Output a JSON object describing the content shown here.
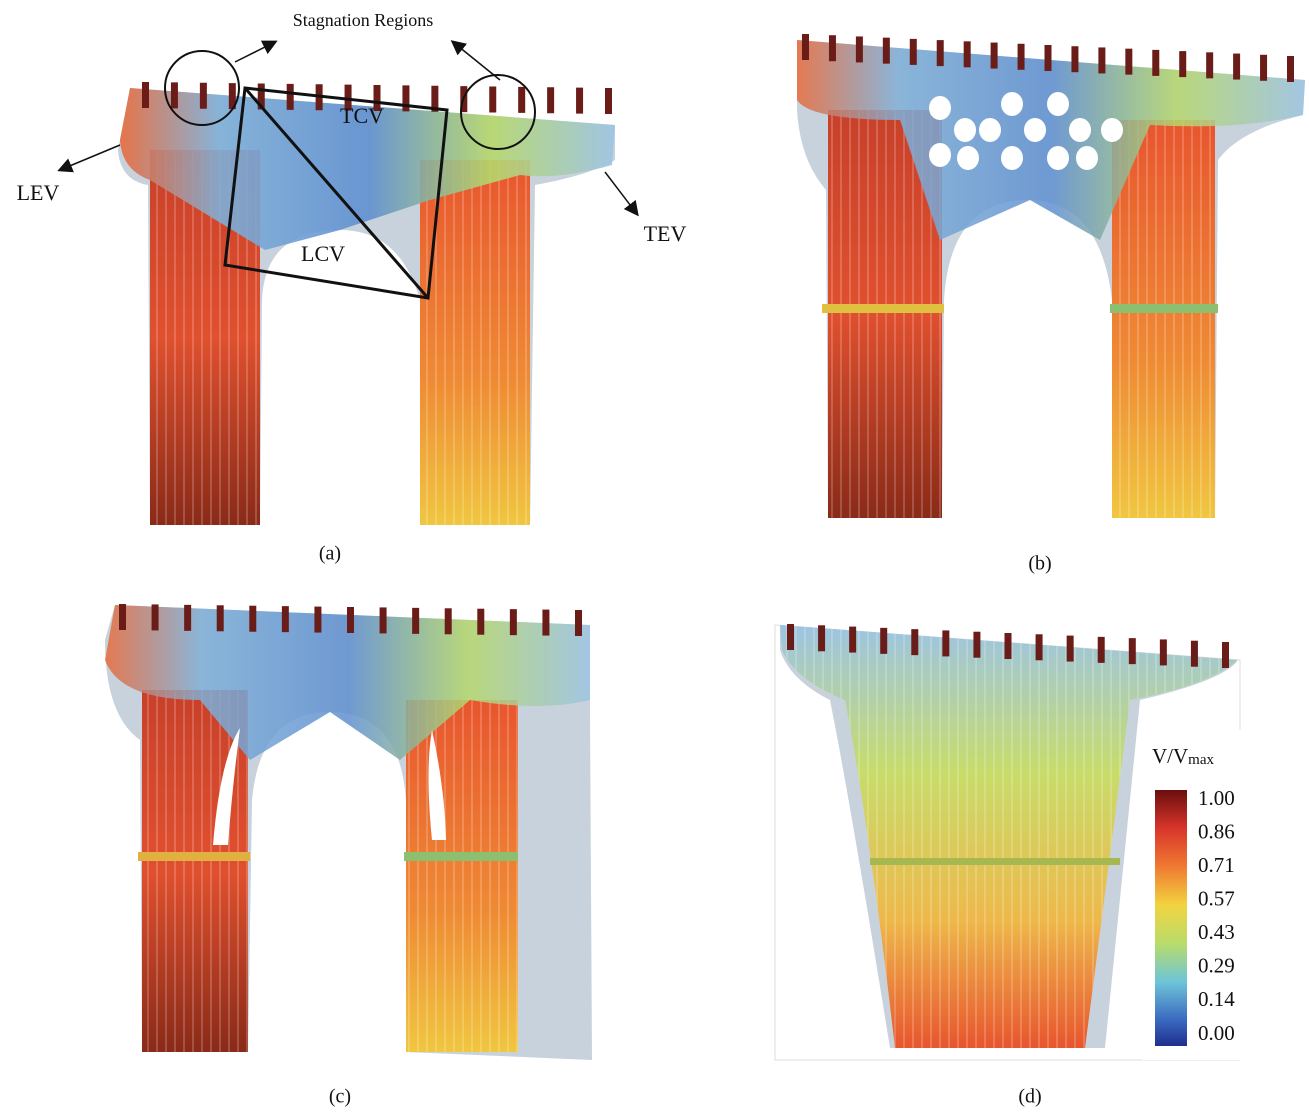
{
  "figure": {
    "annotations": {
      "stagnation": "Stagnation Regions",
      "lev": "LEV",
      "tcv": "TCV",
      "lcv": "LCV",
      "tev": "TEV"
    },
    "captions": [
      "(a)",
      "(b)",
      "(c)",
      "(d)"
    ],
    "colorbar": {
      "title": "V/V",
      "title_sub": "max",
      "ticks": [
        "1.00",
        "0.86",
        "0.71",
        "0.57",
        "0.43",
        "0.29",
        "0.14",
        "0.00"
      ]
    }
  }
}
